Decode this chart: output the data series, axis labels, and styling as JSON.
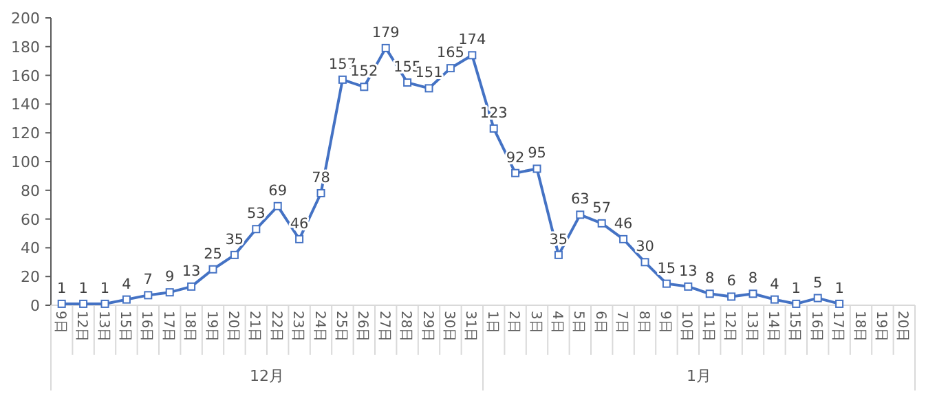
{
  "chart_data": {
    "type": "line",
    "color": "#4472c4",
    "marker": "square",
    "data_labels": true,
    "grid": false,
    "categories": [
      "9日",
      "12日",
      "13日",
      "15日",
      "16日",
      "17日",
      "18日",
      "19日",
      "20日",
      "21日",
      "22日",
      "23日",
      "24日",
      "25日",
      "26日",
      "27日",
      "28日",
      "29日",
      "30日",
      "31日",
      "1日",
      "2日",
      "3日",
      "4日",
      "5日",
      "6日",
      "7日",
      "8日",
      "9日",
      "10日",
      "11日",
      "12日",
      "13日",
      "14日",
      "15日",
      "16日",
      "17日",
      "18日",
      "19日",
      "20日"
    ],
    "values": [
      1,
      1,
      1,
      4,
      7,
      9,
      13,
      25,
      35,
      53,
      69,
      46,
      78,
      157,
      152,
      179,
      155,
      151,
      165,
      174,
      123,
      92,
      95,
      35,
      63,
      57,
      46,
      30,
      15,
      13,
      8,
      6,
      8,
      4,
      1,
      5,
      1,
      null,
      null,
      null
    ],
    "ylim": [
      0,
      200
    ],
    "yticks": [
      0,
      20,
      40,
      60,
      80,
      100,
      120,
      140,
      160,
      180,
      200
    ],
    "annotations": [
      "12月",
      "1月"
    ]
  }
}
